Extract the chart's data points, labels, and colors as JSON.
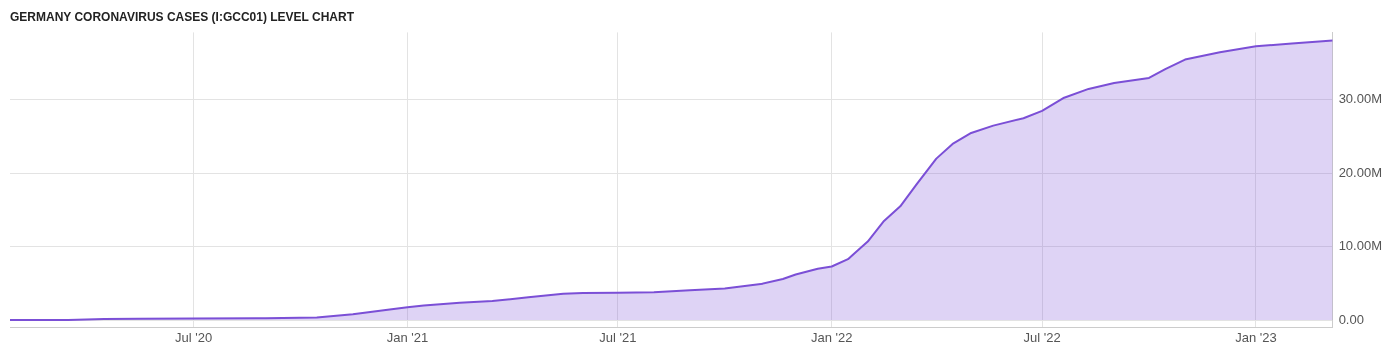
{
  "chart_data": {
    "type": "area",
    "title": "GERMANY CORONAVIRUS CASES (I:GCC01) LEVEL CHART",
    "x": [
      "2020-01-25",
      "2020-03-15",
      "2020-04-15",
      "2020-05-15",
      "2020-07-01",
      "2020-09-01",
      "2020-10-15",
      "2020-11-15",
      "2020-12-15",
      "2021-01-01",
      "2021-01-15",
      "2021-02-15",
      "2021-03-15",
      "2021-04-15",
      "2021-05-15",
      "2021-06-01",
      "2021-07-01",
      "2021-08-01",
      "2021-09-01",
      "2021-10-01",
      "2021-11-01",
      "2021-11-20",
      "2021-12-01",
      "2021-12-20",
      "2022-01-01",
      "2022-01-15",
      "2022-02-01",
      "2022-02-15",
      "2022-03-01",
      "2022-03-15",
      "2022-04-01",
      "2022-04-15",
      "2022-05-01",
      "2022-05-20",
      "2022-06-15",
      "2022-07-01",
      "2022-07-20",
      "2022-08-10",
      "2022-09-01",
      "2022-10-01",
      "2022-10-15",
      "2022-11-01",
      "2022-12-01",
      "2023-01-01",
      "2023-02-01",
      "2023-03-08"
    ],
    "series": [
      {
        "color": "#7b4fd6",
        "values": [
          0,
          0.01,
          0.13,
          0.18,
          0.2,
          0.25,
          0.34,
          0.8,
          1.4,
          1.75,
          2.0,
          2.35,
          2.6,
          3.1,
          3.6,
          3.7,
          3.73,
          3.78,
          4.05,
          4.3,
          4.9,
          5.6,
          6.2,
          7.0,
          7.3,
          8.3,
          10.7,
          13.5,
          15.5,
          18.5,
          22.0,
          24.0,
          25.5,
          26.5,
          27.5,
          28.5,
          30.3,
          31.5,
          32.3,
          33.0,
          34.2,
          35.5,
          36.5,
          37.3,
          37.7,
          38.1
        ]
      }
    ],
    "xlim": [
      "2020-01-25",
      "2023-03-08"
    ],
    "xticks": [
      {
        "value": "2020-07-01",
        "label": "Jul '20"
      },
      {
        "value": "2021-01-01",
        "label": "Jan '21"
      },
      {
        "value": "2021-07-01",
        "label": "Jul '21"
      },
      {
        "value": "2022-01-01",
        "label": "Jan '22"
      },
      {
        "value": "2022-07-01",
        "label": "Jul '22"
      },
      {
        "value": "2023-01-01",
        "label": "Jan '23"
      }
    ],
    "ylim": [
      -1,
      39.2
    ],
    "yticks": [
      {
        "value": 0,
        "label": "0.00"
      },
      {
        "value": 10,
        "label": "10.00M"
      },
      {
        "value": 20,
        "label": "20.00M"
      },
      {
        "value": 30,
        "label": "30.00M"
      }
    ],
    "grid": true,
    "legend": false
  }
}
